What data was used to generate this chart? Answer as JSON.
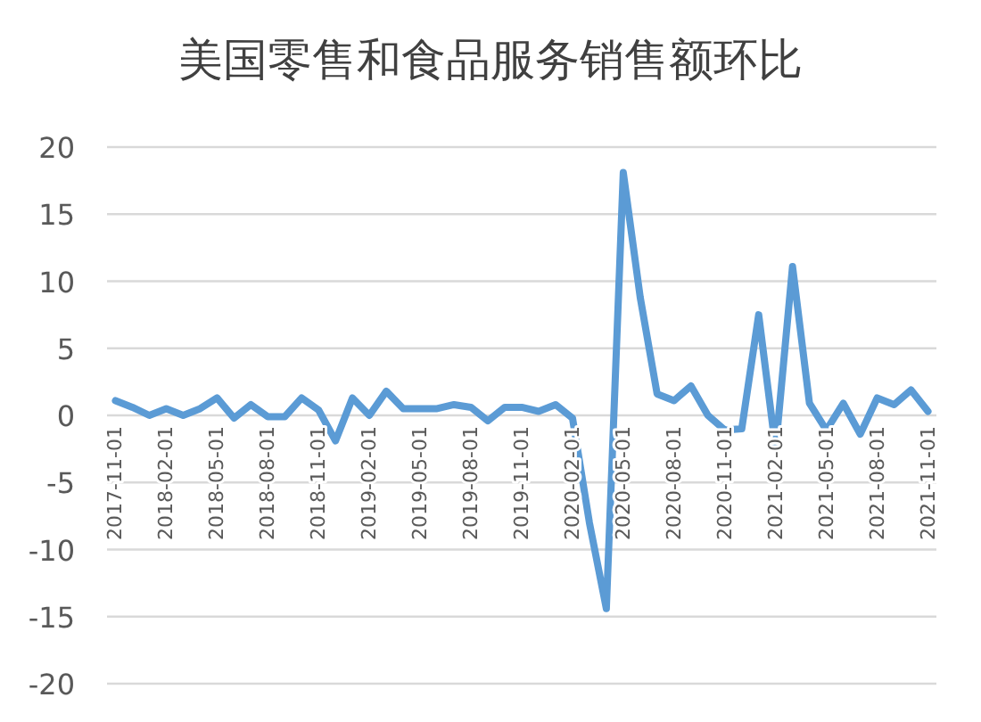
{
  "chart_data": {
    "type": "line",
    "title": "美国零售和食品服务销售额环比",
    "categories": [
      "2017-11-01",
      null,
      null,
      "2018-02-01",
      null,
      null,
      "2018-05-01",
      null,
      null,
      "2018-08-01",
      null,
      null,
      "2018-11-01",
      null,
      null,
      "2019-02-01",
      null,
      null,
      "2019-05-01",
      null,
      null,
      "2019-08-01",
      null,
      null,
      "2019-11-01",
      null,
      null,
      "2020-02-01",
      null,
      null,
      "2020-05-01",
      null,
      null,
      "2020-08-01",
      null,
      null,
      "2020-11-01",
      null,
      null,
      "2021-02-01",
      null,
      null,
      "2021-05-01",
      null,
      null,
      "2021-08-01",
      null,
      null,
      "2021-11-01"
    ],
    "values": [
      1.1,
      0.6,
      0,
      0.5,
      0,
      0.5,
      1.3,
      -0.2,
      0.8,
      -0.1,
      -0.1,
      1.3,
      0.4,
      -1.9,
      1.3,
      0,
      1.8,
      0.5,
      0.5,
      0.5,
      0.8,
      0.6,
      -0.4,
      0.6,
      0.6,
      0.3,
      0.8,
      -0.2,
      -8.0,
      -14.4,
      18.1,
      8.8,
      1.6,
      1.1,
      2.2,
      0,
      -1.1,
      -1.0,
      7.5,
      -2.5,
      11.1,
      0.9,
      -1.1,
      0.9,
      -1.4,
      1.3,
      0.8,
      1.9,
      0.3
    ],
    "color": "#5b9bd5",
    "ylim": [
      -20,
      20
    ],
    "yticks": [
      -20,
      -15,
      -10,
      -5,
      0,
      5,
      10,
      15,
      20
    ],
    "grid": "y"
  }
}
